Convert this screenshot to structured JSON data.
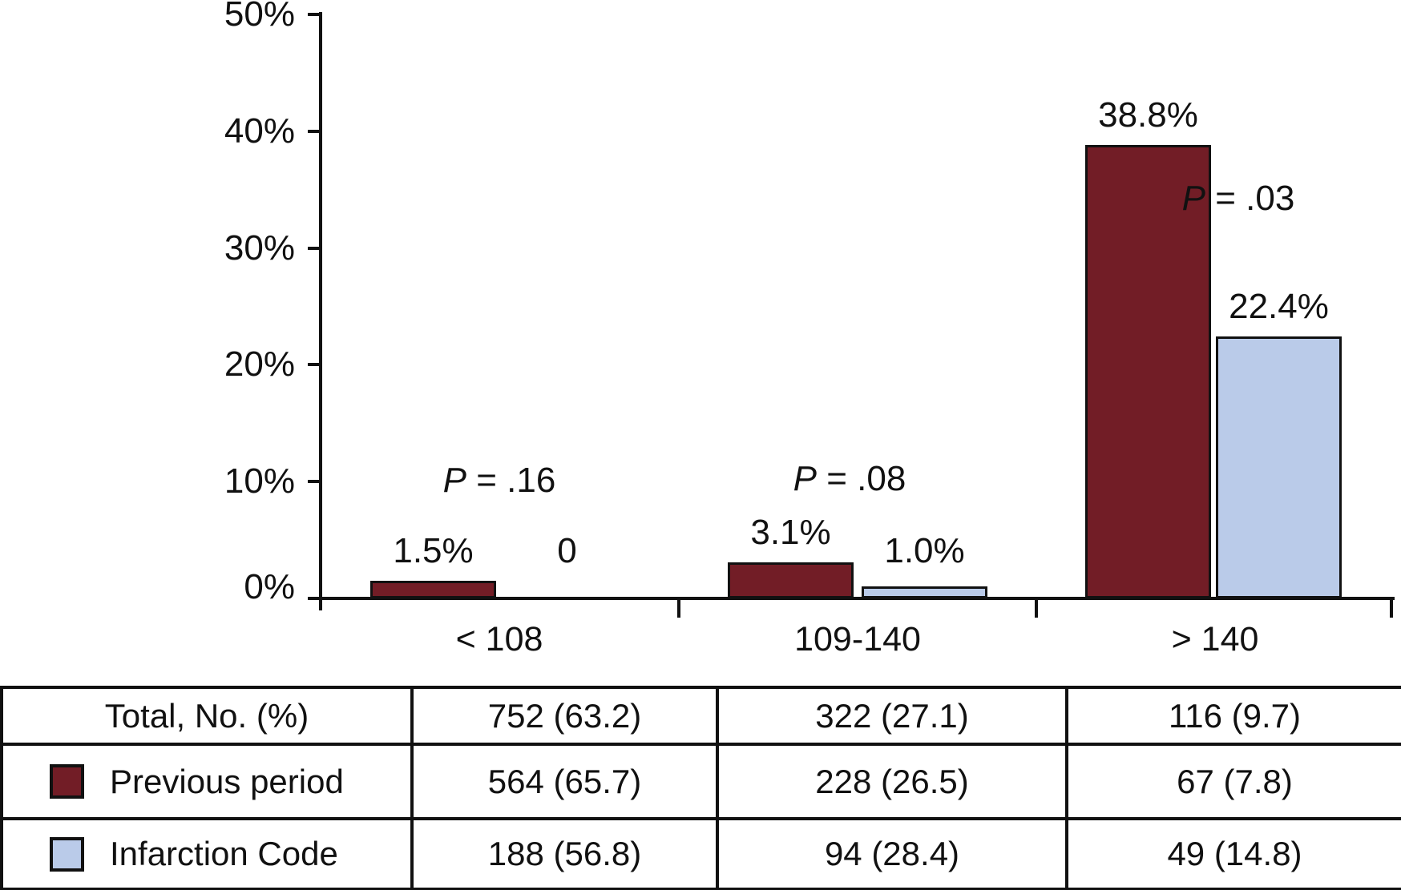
{
  "chart_data": {
    "type": "bar",
    "categories": [
      "< 108",
      "109-140",
      "> 140"
    ],
    "series": [
      {
        "name": "Previous period",
        "color": "#721D26",
        "values": [
          1.5,
          3.1,
          38.8
        ],
        "value_labels": [
          "1.5%",
          "3.1%",
          "38.8%"
        ]
      },
      {
        "name": "Infarction Code",
        "color": "#BACBE9",
        "values": [
          0,
          1.0,
          22.4
        ],
        "value_labels": [
          "0",
          "1.0%",
          "22.4%"
        ]
      }
    ],
    "annotations": [
      {
        "symbol": "P",
        "rest": " = .16"
      },
      {
        "symbol": "P",
        "rest": " = .08"
      },
      {
        "symbol": "P",
        "rest": " = .03"
      }
    ],
    "ytick_labels": [
      "50%",
      "40%",
      "30%",
      "20%",
      "10%",
      "0%"
    ],
    "ylim": [
      0,
      50
    ],
    "grid": "off",
    "legend_position": "table-below"
  },
  "table": {
    "rows": [
      {
        "label": "Total, No. (%)",
        "values": [
          "752 (63.2)",
          "322 (27.1)",
          "116 (9.7)"
        ]
      },
      {
        "label": "Previous period",
        "values": [
          "564 (65.7)",
          "228 (26.5)",
          "67 (7.8)"
        ]
      },
      {
        "label": "Infarction Code",
        "values": [
          "188 (56.8)",
          "94 (28.4)",
          "49 (14.8)"
        ]
      }
    ]
  },
  "colors": {
    "previous_period": "#721D26",
    "infarction_code": "#BACBE9",
    "ink": "#111111"
  }
}
